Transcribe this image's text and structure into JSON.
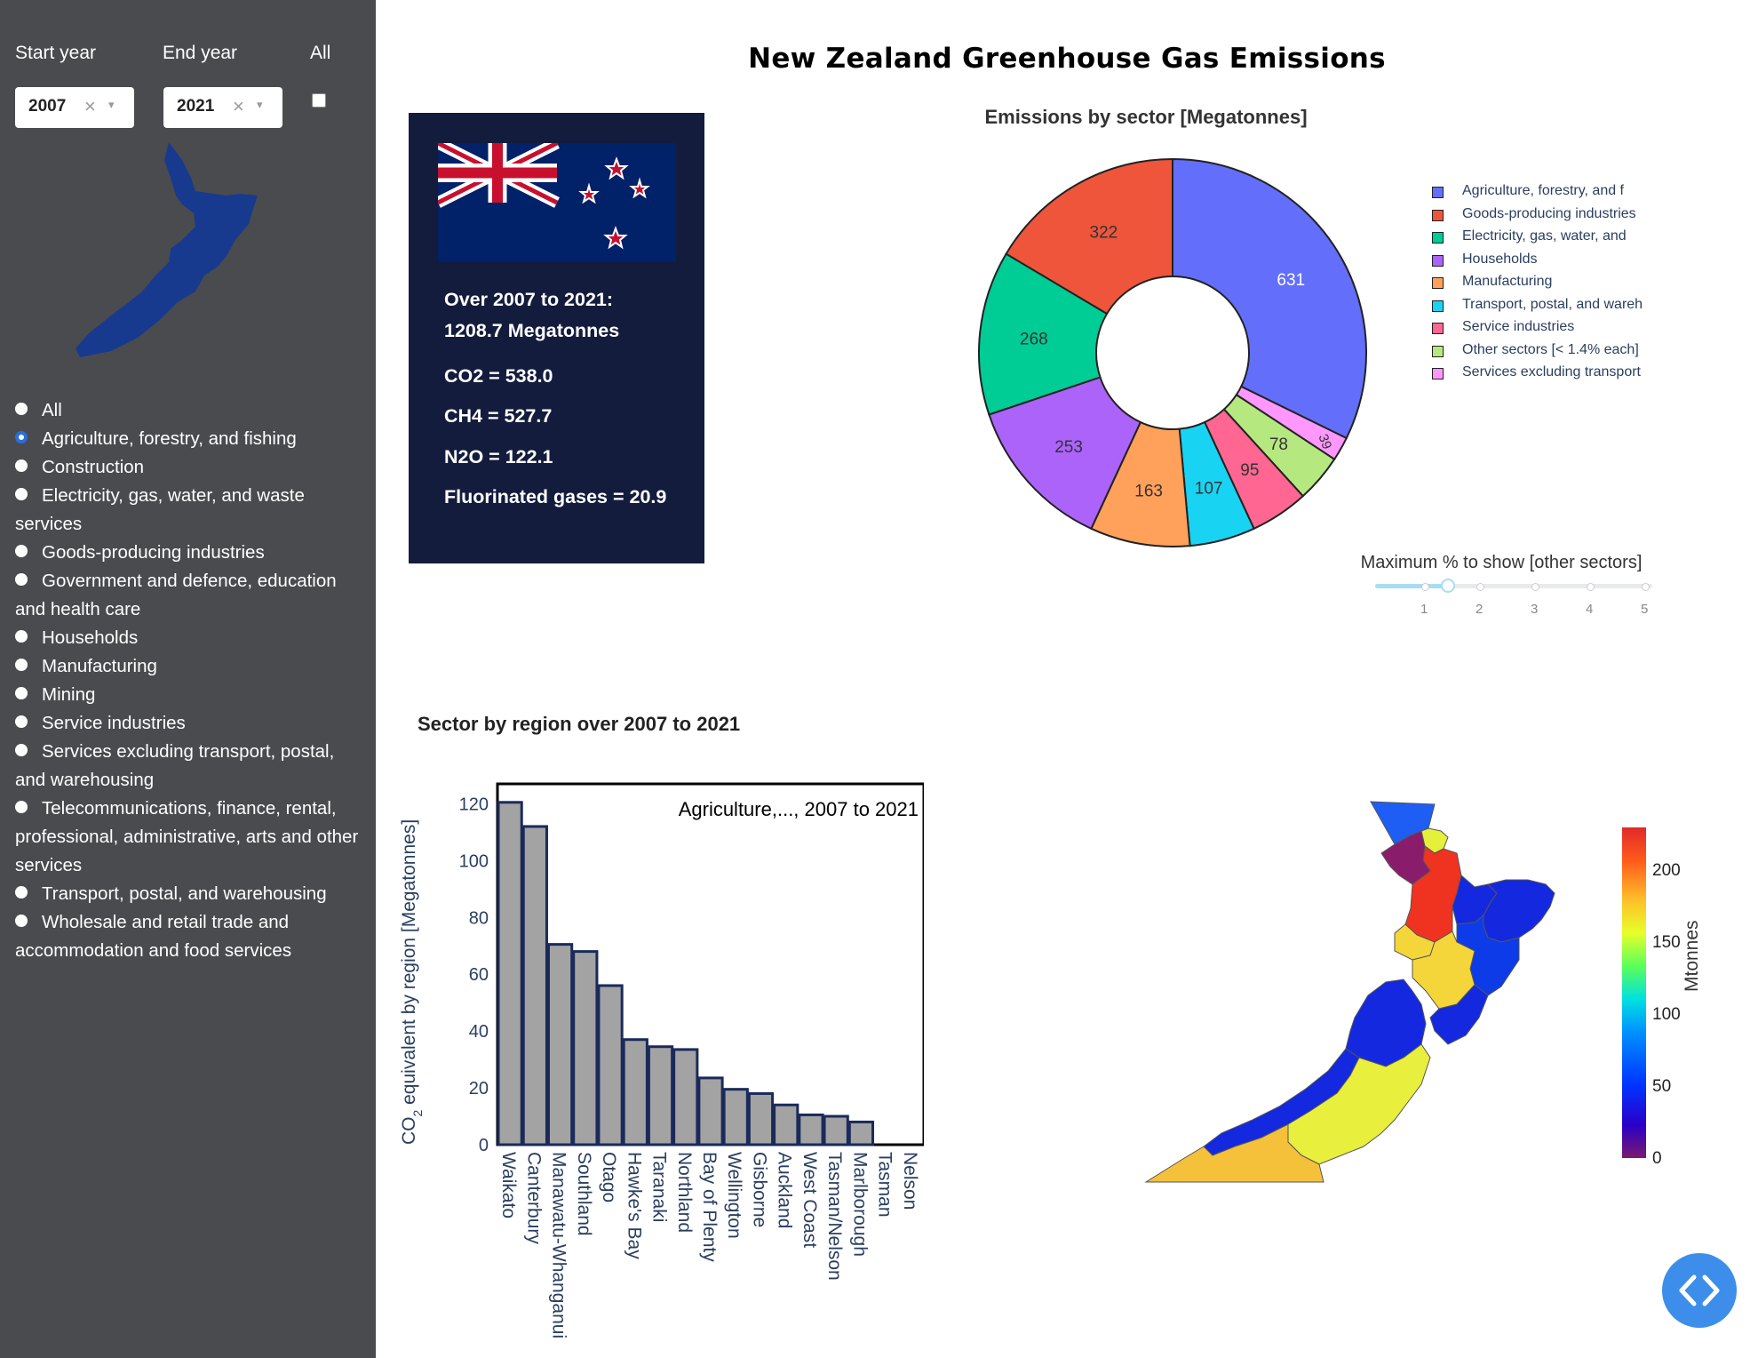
{
  "sidebar": {
    "start_year_label": "Start year",
    "end_year_label": "End year",
    "all_label": "All",
    "start_year_value": "2007",
    "end_year_value": "2021",
    "clear_glyph": "×",
    "chevron_glyph": "▾",
    "all_checked": false,
    "sectors": [
      {
        "label": "All",
        "selected": false
      },
      {
        "label": "Agriculture, forestry, and fishing",
        "selected": true
      },
      {
        "label": "Construction",
        "selected": false
      },
      {
        "label": "Electricity, gas, water, and waste services",
        "selected": false
      },
      {
        "label": "Goods-producing industries",
        "selected": false
      },
      {
        "label": "Government and defence, education and health care",
        "selected": false
      },
      {
        "label": "Households",
        "selected": false
      },
      {
        "label": "Manufacturing",
        "selected": false
      },
      {
        "label": "Mining",
        "selected": false
      },
      {
        "label": "Service industries",
        "selected": false
      },
      {
        "label": "Services excluding transport, postal, and warehousing",
        "selected": false
      },
      {
        "label": "Telecommunications, finance, rental, professional, administrative, arts and other services",
        "selected": false
      },
      {
        "label": "Transport, postal, and warehousing",
        "selected": false
      },
      {
        "label": "Wholesale and retail trade and accommodation and food services",
        "selected": false
      }
    ]
  },
  "main_title": "New Zealand Greenhouse Gas Emissions",
  "summary": {
    "line1": "Over 2007 to 2021:",
    "line2": "1208.7 Megatonnes",
    "co2": "CO2 = 538.0",
    "ch4": "CH4 = 527.7",
    "n2o": "N2O = 122.1",
    "fgas": "Fluorinated gases = 20.9"
  },
  "pie": {
    "title": "Emissions by sector [Megatonnes]",
    "legend_labels": [
      "Agriculture, forestry, and f",
      "Goods-producing industries",
      "Electricity, gas, water, and",
      "Households",
      "Manufacturing",
      "Transport, postal, and wareh",
      "Service industries",
      "Other sectors [< 1.4% each]",
      "Services excluding transport"
    ],
    "colors": [
      "#636efa",
      "#ef553b",
      "#00cc96",
      "#ab63fa",
      "#ffa15a",
      "#19d3f3",
      "#ff6692",
      "#b6e880",
      "#ff97ff"
    ]
  },
  "slider": {
    "title": "Maximum % to show [other sectors]",
    "ticks": [
      "1",
      "2",
      "3",
      "4",
      "5"
    ],
    "value": 1.4
  },
  "bar": {
    "section_title": "Sector by region over 2007 to 2021",
    "annotation": "Agriculture,..., 2007 to 2021"
  },
  "map": {
    "colorbar_title": "Mtonnes",
    "colorbar_ticks": [
      "200",
      "150",
      "100",
      "50",
      "0"
    ],
    "colorscale": "jet"
  },
  "chart_data": [
    {
      "type": "pie",
      "title": "Emissions by sector [Megatonnes]",
      "hole": true,
      "labels": [
        "Agriculture, forestry, and f",
        "Goods-producing industries",
        "Electricity, gas, water, and",
        "Households",
        "Manufacturing",
        "Transport, postal, and wareh",
        "Service industries",
        "Other sectors [< 1.4% each]",
        "Services excluding transport"
      ],
      "order": [
        "Agriculture, forestry, and f",
        "Services excluding transport",
        "Other sectors [< 1.4% each]",
        "Service industries",
        "Transport, postal, and wareh",
        "Manufacturing",
        "Households",
        "Electricity, gas, water, and",
        "Goods-producing industries"
      ],
      "values": [
        631,
        322,
        268,
        253,
        163,
        107,
        95,
        78,
        39
      ],
      "legend_position": "right"
    },
    {
      "type": "bar",
      "title": "",
      "annotation": "Agriculture,..., 2007 to 2021",
      "categories": [
        "Waikato",
        "Canterbury",
        "Manawatu-Whanganui",
        "Southland",
        "Otago",
        "Hawke's Bay",
        "Taranaki",
        "Northland",
        "Bay of Plenty",
        "Wellington",
        "Gisborne",
        "Auckland",
        "West Coast",
        "Tasman/Nelson",
        "Marlborough",
        "Tasman",
        "Nelson"
      ],
      "values": [
        120.5,
        112,
        70.5,
        68,
        56,
        37,
        34.5,
        33.5,
        23.5,
        19.5,
        18,
        14,
        10.5,
        10,
        8,
        0,
        0
      ],
      "ylabel_prefix": "CO",
      "ylabel_sub": "2",
      "ylabel_suffix": " equivalent by region  [Megatonnes]",
      "yticks": [
        "0",
        "20",
        "40",
        "60",
        "80",
        "100",
        "120"
      ],
      "ylim": [
        0,
        127
      ]
    }
  ]
}
